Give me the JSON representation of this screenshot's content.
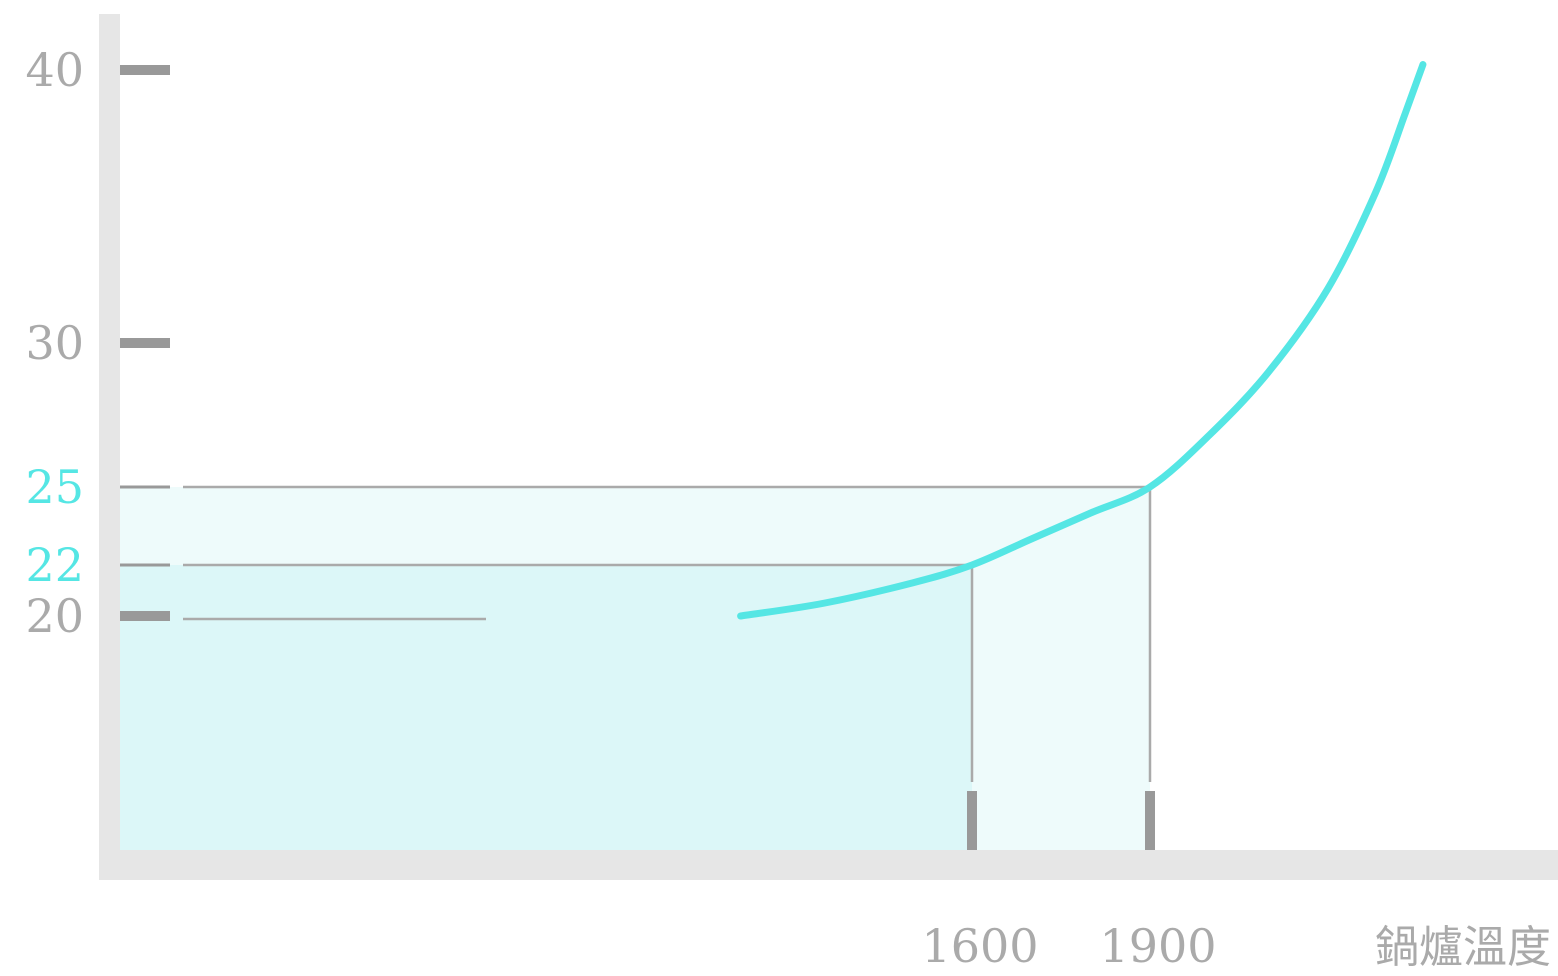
{
  "colors": {
    "accent": "#55e6e4",
    "grey_tick": "#999999",
    "axis": "#e6e6e6",
    "label_grey": "#aaaaaa",
    "fill_outer": "#eefbfb",
    "fill_inner": "#dcf7f8",
    "guide_line": "#aaaaaa"
  },
  "chart_data": {
    "type": "line",
    "title": "",
    "xlabel": "鍋爐溫度",
    "ylabel": "",
    "x_ticks": [
      "1600",
      "1900"
    ],
    "y_ticks": [
      {
        "value": 20,
        "label": "20",
        "highlight": false
      },
      {
        "value": 22,
        "label": "22",
        "highlight": true
      },
      {
        "value": 25,
        "label": "25",
        "highlight": true
      },
      {
        "value": 30,
        "label": "30",
        "highlight": false
      },
      {
        "value": 40,
        "label": "40",
        "highlight": false
      }
    ],
    "series": [
      {
        "points": [
          {
            "x": 1210,
            "y": 20.0
          },
          {
            "x": 1350,
            "y": 20.5
          },
          {
            "x": 1500,
            "y": 21.3
          },
          {
            "x": 1600,
            "y": 22.0
          },
          {
            "x": 1700,
            "y": 23.0
          },
          {
            "x": 1800,
            "y": 24.0
          },
          {
            "x": 1900,
            "y": 25.0
          },
          {
            "x": 2000,
            "y": 26.8
          },
          {
            "x": 2100,
            "y": 29.0
          },
          {
            "x": 2200,
            "y": 32.0
          },
          {
            "x": 2280,
            "y": 35.5
          },
          {
            "x": 2330,
            "y": 38.4
          },
          {
            "x": 2360,
            "y": 40.2
          }
        ]
      }
    ],
    "highlights": [
      {
        "x": 1600,
        "y": 22
      },
      {
        "x": 1900,
        "y": 25
      }
    ]
  }
}
